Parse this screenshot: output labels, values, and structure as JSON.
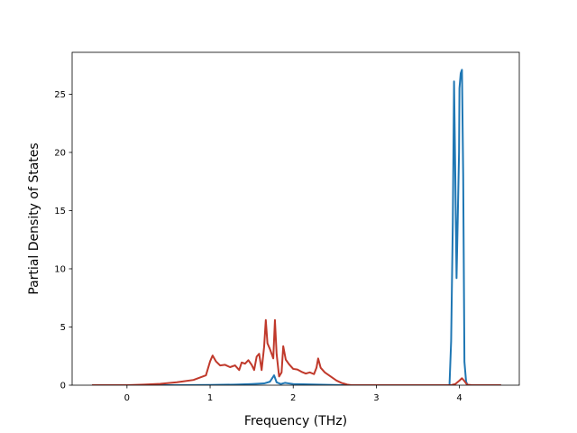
{
  "chart_data": {
    "type": "line",
    "title": "",
    "xlabel": "Frequency (THz)",
    "ylabel": "Partial Density of States",
    "xlim": [
      -0.66,
      4.72
    ],
    "ylim": [
      0,
      28.6
    ],
    "xticks": [
      0,
      1,
      2,
      3,
      4
    ],
    "yticks": [
      0,
      5,
      10,
      15,
      20,
      25
    ],
    "grid": false,
    "legend": "none",
    "series": [
      {
        "color": "#1f77b4",
        "points": [
          [
            -0.42,
            0
          ],
          [
            0.0,
            0
          ],
          [
            0.5,
            0
          ],
          [
            1.0,
            0.02
          ],
          [
            1.3,
            0.05
          ],
          [
            1.5,
            0.1
          ],
          [
            1.65,
            0.15
          ],
          [
            1.72,
            0.3
          ],
          [
            1.77,
            0.85
          ],
          [
            1.8,
            0.25
          ],
          [
            1.85,
            0.1
          ],
          [
            1.9,
            0.2
          ],
          [
            1.95,
            0.15
          ],
          [
            2.0,
            0.1
          ],
          [
            2.3,
            0.05
          ],
          [
            2.6,
            0
          ],
          [
            3.0,
            0
          ],
          [
            3.5,
            0
          ],
          [
            3.88,
            0
          ],
          [
            3.9,
            3.8
          ],
          [
            3.92,
            14.0
          ],
          [
            3.935,
            26.1
          ],
          [
            3.95,
            18.0
          ],
          [
            3.965,
            9.2
          ],
          [
            3.98,
            14.5
          ],
          [
            3.995,
            20.0
          ],
          [
            4.0,
            25.5
          ],
          [
            4.015,
            26.8
          ],
          [
            4.03,
            27.1
          ],
          [
            4.045,
            18.0
          ],
          [
            4.06,
            2.0
          ],
          [
            4.08,
            0.3
          ],
          [
            4.1,
            0
          ],
          [
            4.5,
            0
          ]
        ]
      },
      {
        "color": "#c0392b",
        "points": [
          [
            -0.42,
            0
          ],
          [
            0.0,
            0.0
          ],
          [
            0.2,
            0.05
          ],
          [
            0.4,
            0.12
          ],
          [
            0.6,
            0.25
          ],
          [
            0.8,
            0.45
          ],
          [
            0.95,
            0.85
          ],
          [
            1.0,
            2.05
          ],
          [
            1.03,
            2.55
          ],
          [
            1.07,
            2.05
          ],
          [
            1.12,
            1.7
          ],
          [
            1.18,
            1.75
          ],
          [
            1.24,
            1.55
          ],
          [
            1.3,
            1.7
          ],
          [
            1.35,
            1.3
          ],
          [
            1.38,
            1.95
          ],
          [
            1.42,
            1.85
          ],
          [
            1.46,
            2.15
          ],
          [
            1.5,
            1.75
          ],
          [
            1.53,
            1.3
          ],
          [
            1.56,
            2.45
          ],
          [
            1.59,
            2.7
          ],
          [
            1.62,
            1.3
          ],
          [
            1.65,
            3.3
          ],
          [
            1.67,
            5.6
          ],
          [
            1.69,
            3.6
          ],
          [
            1.72,
            3.1
          ],
          [
            1.76,
            2.3
          ],
          [
            1.78,
            5.6
          ],
          [
            1.8,
            2.7
          ],
          [
            1.83,
            0.75
          ],
          [
            1.86,
            1.1
          ],
          [
            1.88,
            3.35
          ],
          [
            1.91,
            2.2
          ],
          [
            1.95,
            1.8
          ],
          [
            2.0,
            1.4
          ],
          [
            2.05,
            1.35
          ],
          [
            2.1,
            1.15
          ],
          [
            2.15,
            1.0
          ],
          [
            2.2,
            1.1
          ],
          [
            2.25,
            0.95
          ],
          [
            2.28,
            1.5
          ],
          [
            2.3,
            2.3
          ],
          [
            2.33,
            1.5
          ],
          [
            2.38,
            1.1
          ],
          [
            2.45,
            0.75
          ],
          [
            2.52,
            0.4
          ],
          [
            2.58,
            0.2
          ],
          [
            2.65,
            0.05
          ],
          [
            2.7,
            0
          ],
          [
            3.0,
            0
          ],
          [
            3.5,
            0
          ],
          [
            3.9,
            0
          ],
          [
            3.95,
            0.1
          ],
          [
            4.0,
            0.4
          ],
          [
            4.03,
            0.6
          ],
          [
            4.06,
            0.35
          ],
          [
            4.09,
            0.05
          ],
          [
            4.15,
            0
          ],
          [
            4.5,
            0
          ]
        ]
      }
    ]
  }
}
